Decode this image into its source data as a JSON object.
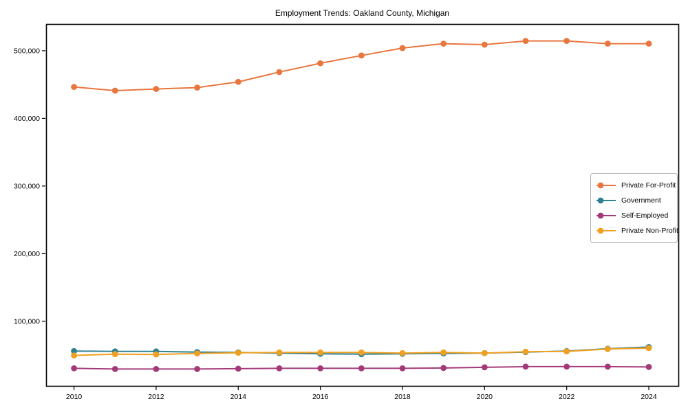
{
  "chart_data": {
    "type": "line",
    "title": "Employment Trends: Oakland County, Michigan",
    "x": [
      2010,
      2011,
      2012,
      2013,
      2014,
      2015,
      2016,
      2017,
      2018,
      2019,
      2020,
      2021,
      2022,
      2023,
      2024
    ],
    "xlim": [
      2009.32,
      2024.72
    ],
    "ylim": [
      4500,
      539500
    ],
    "grid": false,
    "legend_position": "center right",
    "xticks": [
      2010,
      2012,
      2014,
      2016,
      2018,
      2020,
      2022,
      2024
    ],
    "xtick_labels": [
      "2010",
      "2012",
      "2014",
      "2016",
      "2018",
      "2020",
      "2022",
      "2024"
    ],
    "yticks": [
      100000,
      200000,
      300000,
      400000,
      500000
    ],
    "ytick_labels": [
      "100,000",
      "200,000",
      "300,000",
      "400,000",
      "500,000"
    ],
    "series": [
      {
        "name": "Private For-Profit",
        "color": "#e8763e",
        "marker": "circle",
        "values": [
          446500,
          441000,
          443500,
          445500,
          454000,
          468500,
          481500,
          493000,
          504000,
          510500,
          509000,
          514500,
          514500,
          510500,
          510500
        ]
      },
      {
        "name": "Government",
        "color": "#2f8093",
        "marker": "circle",
        "values": [
          56000,
          55500,
          55500,
          54500,
          54000,
          53000,
          52000,
          51500,
          52000,
          52500,
          53000,
          54500,
          56000,
          59500,
          62000
        ]
      },
      {
        "name": "Self-Employed",
        "color": "#a43978",
        "marker": "circle",
        "values": [
          30500,
          29500,
          29500,
          29500,
          30000,
          30500,
          30500,
          30500,
          30500,
          31000,
          32000,
          33000,
          33000,
          33000,
          32500
        ]
      },
      {
        "name": "Private Non-Profit",
        "color": "#f0a020",
        "marker": "circle",
        "values": [
          49500,
          51500,
          51000,
          52500,
          53500,
          54000,
          54000,
          54000,
          53000,
          54000,
          53000,
          55000,
          55500,
          59000,
          60500
        ]
      }
    ]
  }
}
